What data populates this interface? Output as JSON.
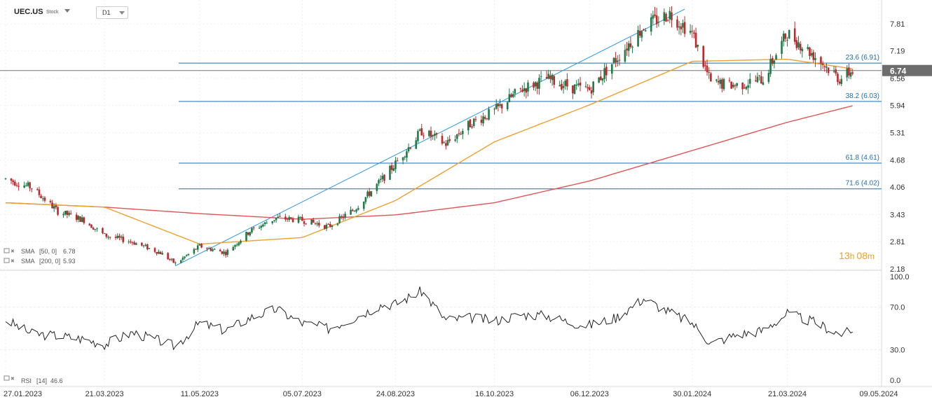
{
  "header": {
    "symbol": "UEC.US",
    "symbol_type": "Stock",
    "timeframe": "D1"
  },
  "countdown": {
    "hours": "13",
    "h_unit": "h",
    "minutes": "08",
    "m_unit": "m"
  },
  "indicators": {
    "sma50": {
      "prefix": "SMA",
      "params": "[50,  0]",
      "value": "6.78"
    },
    "sma200": {
      "prefix": "SMA",
      "params": "[200,  0]",
      "value": "5.93"
    },
    "rsi": {
      "prefix": "RSI",
      "params": "[14]",
      "value": "46.6"
    }
  },
  "colors": {
    "up": "#1e7a46",
    "down": "#c0272d",
    "sma50": "#f0a030",
    "sma200": "#e05555",
    "fib": "#1b6fb0",
    "channel": "#2a9ae0",
    "countdown": "#f0a020"
  },
  "chart_data": [
    {
      "type": "candlestick",
      "title": "UEC.US",
      "y_ticks": [
        "7.81",
        "7.19",
        "6.56",
        "5.94",
        "5.31",
        "4.68",
        "4.06",
        "3.43",
        "2.81",
        "2.18"
      ],
      "ylim": [
        2.18,
        8.2
      ],
      "x_ticks": [
        "27.01.2023",
        "21.03.2023",
        "11.05.2023",
        "05.07.2023",
        "24.08.2023",
        "16.10.2023",
        "06.12.2023",
        "30.01.2024",
        "21.03.2024",
        "09.05.2024"
      ],
      "last_price": "6.74",
      "fib_levels": [
        {
          "label": "23.6 (6.91)",
          "value": 6.91
        },
        {
          "label": "38.2 (6.03)",
          "value": 6.03
        },
        {
          "label": "61.8 (4.61)",
          "value": 4.61
        },
        {
          "label": "71.6 (4.02)",
          "value": 4.02
        }
      ],
      "price_path": [
        [
          "27.01.2023",
          4.25
        ],
        [
          "10.02.2023",
          4.05
        ],
        [
          "24.02.2023",
          3.5
        ],
        [
          "10.03.2023",
          3.3
        ],
        [
          "21.03.2023",
          2.95
        ],
        [
          "05.04.2023",
          2.8
        ],
        [
          "20.04.2023",
          2.55
        ],
        [
          "28.04.2023",
          2.3
        ],
        [
          "11.05.2023",
          2.7
        ],
        [
          "25.05.2023",
          2.55
        ],
        [
          "07.06.2023",
          3.05
        ],
        [
          "21.06.2023",
          3.35
        ],
        [
          "05.07.2023",
          3.3
        ],
        [
          "19.07.2023",
          3.15
        ],
        [
          "02.08.2023",
          3.55
        ],
        [
          "16.08.2023",
          4.2
        ],
        [
          "24.08.2023",
          4.6
        ],
        [
          "07.09.2023",
          5.35
        ],
        [
          "20.09.2023",
          5.05
        ],
        [
          "04.10.2023",
          5.55
        ],
        [
          "16.10.2023",
          5.8
        ],
        [
          "30.10.2023",
          6.3
        ],
        [
          "13.11.2023",
          6.55
        ],
        [
          "27.11.2023",
          6.35
        ],
        [
          "06.12.2023",
          6.3
        ],
        [
          "20.12.2023",
          7.0
        ],
        [
          "04.01.2024",
          7.75
        ],
        [
          "18.01.2024",
          8.05
        ],
        [
          "30.01.2024",
          7.6
        ],
        [
          "09.02.2024",
          6.45
        ],
        [
          "23.02.2024",
          6.4
        ],
        [
          "08.03.2024",
          6.55
        ],
        [
          "21.03.2024",
          7.6
        ],
        [
          "04.04.2024",
          7.1
        ],
        [
          "18.04.2024",
          6.55
        ],
        [
          "25.04.2024",
          6.74
        ]
      ],
      "sma50_path": [
        [
          "27.01.2023",
          3.7
        ],
        [
          "21.03.2023",
          3.6
        ],
        [
          "11.05.2023",
          2.75
        ],
        [
          "05.07.2023",
          2.9
        ],
        [
          "24.08.2023",
          3.75
        ],
        [
          "16.10.2023",
          5.1
        ],
        [
          "06.12.2023",
          5.95
        ],
        [
          "30.01.2024",
          6.95
        ],
        [
          "21.03.2024",
          7.0
        ],
        [
          "25.04.2024",
          6.78
        ]
      ],
      "sma200_path": [
        [
          "27.01.2023",
          3.7
        ],
        [
          "21.03.2023",
          3.6
        ],
        [
          "11.05.2023",
          3.45
        ],
        [
          "05.07.2023",
          3.32
        ],
        [
          "24.08.2023",
          3.42
        ],
        [
          "16.10.2023",
          3.7
        ],
        [
          "06.12.2023",
          4.2
        ],
        [
          "30.01.2024",
          4.9
        ],
        [
          "21.03.2024",
          5.55
        ],
        [
          "25.04.2024",
          5.93
        ]
      ],
      "channel_line": [
        [
          "28.04.2023",
          2.25
        ],
        [
          "26.01.2024",
          8.15
        ]
      ]
    },
    {
      "type": "line",
      "title": "RSI",
      "y_ticks": [
        "100.0",
        "70.0",
        "30.0",
        "0.0"
      ],
      "ylim": [
        0,
        100
      ],
      "rsi_path": [
        [
          "27.01.2023",
          58
        ],
        [
          "10.02.2023",
          45
        ],
        [
          "24.02.2023",
          43
        ],
        [
          "10.03.2023",
          40
        ],
        [
          "21.03.2023",
          35
        ],
        [
          "05.04.2023",
          46
        ],
        [
          "20.04.2023",
          38
        ],
        [
          "28.04.2023",
          33
        ],
        [
          "11.05.2023",
          55
        ],
        [
          "25.05.2023",
          48
        ],
        [
          "07.06.2023",
          60
        ],
        [
          "21.06.2023",
          68
        ],
        [
          "05.07.2023",
          55
        ],
        [
          "19.07.2023",
          50
        ],
        [
          "02.08.2023",
          60
        ],
        [
          "16.08.2023",
          72
        ],
        [
          "24.08.2023",
          73
        ],
        [
          "07.09.2023",
          85
        ],
        [
          "20.09.2023",
          58
        ],
        [
          "04.10.2023",
          60
        ],
        [
          "16.10.2023",
          57
        ],
        [
          "30.10.2023",
          63
        ],
        [
          "13.11.2023",
          62
        ],
        [
          "27.11.2023",
          55
        ],
        [
          "06.12.2023",
          53
        ],
        [
          "20.12.2023",
          60
        ],
        [
          "04.01.2024",
          78
        ],
        [
          "18.01.2024",
          65
        ],
        [
          "30.01.2024",
          55
        ],
        [
          "09.02.2024",
          36
        ],
        [
          "23.02.2024",
          44
        ],
        [
          "08.03.2024",
          48
        ],
        [
          "21.03.2024",
          64
        ],
        [
          "04.04.2024",
          56
        ],
        [
          "18.04.2024",
          45
        ],
        [
          "25.04.2024",
          46.6
        ]
      ]
    }
  ]
}
